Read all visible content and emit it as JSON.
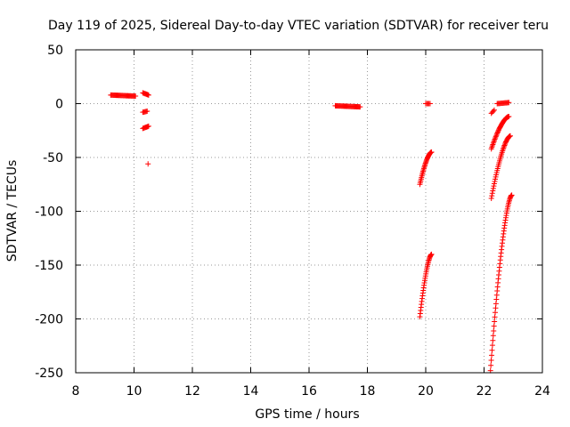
{
  "chart_data": {
    "type": "scatter",
    "title": "Day 119 of 2025, Sidereal Day-to-day VTEC variation (SDTVAR) for receiver teru",
    "xlabel": "GPS time / hours",
    "ylabel": "SDTVAR / TECUs",
    "xlim": [
      8,
      24
    ],
    "ylim": [
      -250,
      50
    ],
    "xticks": [
      8,
      10,
      12,
      14,
      16,
      18,
      20,
      22,
      24
    ],
    "yticks": [
      50,
      0,
      -50,
      -100,
      -150,
      -200,
      -250
    ],
    "grid": true,
    "marker": "+",
    "color": "#ff0000",
    "series": [
      {
        "name": "seg-09-flat",
        "x0": 9.2,
        "x1": 10.05,
        "y0": 8,
        "y1": 7,
        "n": 30
      },
      {
        "name": "seg-10-upper",
        "x0": 10.3,
        "x1": 10.5,
        "y0": 10,
        "y1": 8,
        "n": 8
      },
      {
        "name": "seg-10-mid",
        "x0": 10.3,
        "x1": 10.45,
        "y0": -8,
        "y1": -7,
        "n": 6
      },
      {
        "name": "seg-10-low",
        "x0": 10.3,
        "x1": 10.5,
        "y0": -23,
        "y1": -21,
        "n": 8
      },
      {
        "name": "seg-10-outlier",
        "x0": 10.48,
        "x1": 10.48,
        "y0": -56,
        "y1": -56,
        "n": 1
      },
      {
        "name": "seg-17-flat",
        "x0": 16.9,
        "x1": 17.75,
        "y0": -2,
        "y1": -3,
        "n": 30
      },
      {
        "name": "seg-20-flat",
        "x0": 20.0,
        "x1": 20.15,
        "y0": 0,
        "y1": 0,
        "n": 5
      },
      {
        "name": "seg-20-arc-a",
        "x0": 19.8,
        "x1": 20.2,
        "y0": -75,
        "y1": -45,
        "n": 30,
        "curve": "concave"
      },
      {
        "name": "seg-20-arc-b",
        "x0": 19.8,
        "x1": 20.2,
        "y0": -198,
        "y1": -140,
        "n": 32,
        "curve": "concave"
      },
      {
        "name": "seg-22-short",
        "x0": 22.25,
        "x1": 22.35,
        "y0": -9,
        "y1": -6,
        "n": 4
      },
      {
        "name": "seg-22-flat",
        "x0": 22.45,
        "x1": 22.85,
        "y0": 0,
        "y1": 1,
        "n": 14
      },
      {
        "name": "seg-22-arc-a",
        "x0": 22.25,
        "x1": 22.85,
        "y0": -42,
        "y1": -12,
        "n": 36,
        "curve": "concave"
      },
      {
        "name": "seg-22-arc-b",
        "x0": 22.25,
        "x1": 22.9,
        "y0": -88,
        "y1": -30,
        "n": 40,
        "curve": "concave"
      },
      {
        "name": "seg-22-arc-c",
        "x0": 22.22,
        "x1": 22.95,
        "y0": -248,
        "y1": -85,
        "n": 55,
        "curve": "concave"
      }
    ]
  }
}
